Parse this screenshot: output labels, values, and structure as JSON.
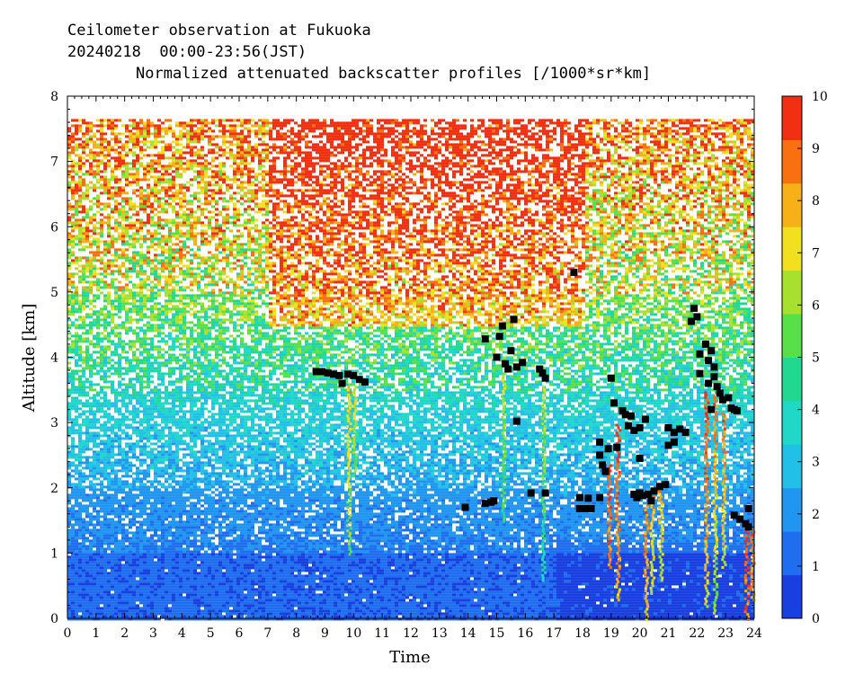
{
  "header": {
    "line1": "Ceilometer observation at Fukuoka",
    "line2": "20240218  00:00-23:56(JST)",
    "line3": "Normalized attenuated backscatter profiles [/1000*sr*km]"
  },
  "chart_data": {
    "type": "heatmap",
    "title": "Normalized attenuated backscatter profiles [/1000*sr*km]",
    "xlabel": "Time",
    "ylabel": "Altitude [km]",
    "xlim": [
      0,
      24
    ],
    "ylim": [
      0,
      8
    ],
    "x_ticks": [
      "0",
      "1",
      "2",
      "3",
      "4",
      "5",
      "6",
      "7",
      "8",
      "9",
      "10",
      "11",
      "12",
      "13",
      "14",
      "15",
      "16",
      "17",
      "18",
      "19",
      "20",
      "21",
      "22",
      "23",
      "24"
    ],
    "y_ticks": [
      "0",
      "1",
      "2",
      "3",
      "4",
      "5",
      "6",
      "7",
      "8"
    ],
    "colorbar": {
      "range": [
        0,
        10
      ],
      "ticks": [
        "0",
        "1",
        "2",
        "3",
        "4",
        "5",
        "6",
        "7",
        "8",
        "9",
        "10"
      ],
      "colors": [
        "#1a3fe0",
        "#1f6ef0",
        "#2196f0",
        "#22c0e8",
        "#20d8c8",
        "#22d890",
        "#58e048",
        "#a8e030",
        "#f0e020",
        "#f8b018",
        "#f87010",
        "#f03010"
      ]
    },
    "data_ceiling_km": 7.65,
    "cloud_base_points": [
      {
        "t": 8.7,
        "alt": 3.78
      },
      {
        "t": 8.9,
        "alt": 3.78
      },
      {
        "t": 9.1,
        "alt": 3.76
      },
      {
        "t": 9.3,
        "alt": 3.74
      },
      {
        "t": 9.5,
        "alt": 3.72
      },
      {
        "t": 9.6,
        "alt": 3.6
      },
      {
        "t": 9.8,
        "alt": 3.74
      },
      {
        "t": 10.0,
        "alt": 3.72
      },
      {
        "t": 10.2,
        "alt": 3.66
      },
      {
        "t": 10.4,
        "alt": 3.62
      },
      {
        "t": 13.9,
        "alt": 1.7
      },
      {
        "t": 14.6,
        "alt": 1.76
      },
      {
        "t": 14.8,
        "alt": 1.78
      },
      {
        "t": 14.9,
        "alt": 1.8
      },
      {
        "t": 14.6,
        "alt": 4.28
      },
      {
        "t": 15.2,
        "alt": 4.48
      },
      {
        "t": 15.1,
        "alt": 4.32
      },
      {
        "t": 15.6,
        "alt": 4.58
      },
      {
        "t": 15.0,
        "alt": 4.0
      },
      {
        "t": 15.3,
        "alt": 3.9
      },
      {
        "t": 15.4,
        "alt": 3.82
      },
      {
        "t": 15.5,
        "alt": 4.1
      },
      {
        "t": 15.7,
        "alt": 3.85
      },
      {
        "t": 15.9,
        "alt": 3.92
      },
      {
        "t": 15.7,
        "alt": 3.02
      },
      {
        "t": 16.2,
        "alt": 1.92
      },
      {
        "t": 16.7,
        "alt": 1.92
      },
      {
        "t": 16.5,
        "alt": 3.82
      },
      {
        "t": 16.6,
        "alt": 3.76
      },
      {
        "t": 16.7,
        "alt": 3.68
      },
      {
        "t": 17.7,
        "alt": 5.3
      },
      {
        "t": 17.9,
        "alt": 1.85
      },
      {
        "t": 17.9,
        "alt": 1.68
      },
      {
        "t": 18.1,
        "alt": 1.68
      },
      {
        "t": 18.3,
        "alt": 1.68
      },
      {
        "t": 18.2,
        "alt": 1.84
      },
      {
        "t": 18.6,
        "alt": 1.85
      },
      {
        "t": 18.6,
        "alt": 2.5
      },
      {
        "t": 18.7,
        "alt": 2.35
      },
      {
        "t": 18.8,
        "alt": 2.25
      },
      {
        "t": 18.9,
        "alt": 2.6
      },
      {
        "t": 18.6,
        "alt": 2.7
      },
      {
        "t": 19.0,
        "alt": 3.68
      },
      {
        "t": 19.1,
        "alt": 3.3
      },
      {
        "t": 19.2,
        "alt": 2.62
      },
      {
        "t": 19.4,
        "alt": 3.18
      },
      {
        "t": 19.5,
        "alt": 3.12
      },
      {
        "t": 19.6,
        "alt": 2.95
      },
      {
        "t": 19.7,
        "alt": 3.1
      },
      {
        "t": 19.8,
        "alt": 2.88
      },
      {
        "t": 20.0,
        "alt": 2.92
      },
      {
        "t": 20.2,
        "alt": 3.05
      },
      {
        "t": 19.8,
        "alt": 1.9
      },
      {
        "t": 19.9,
        "alt": 1.85
      },
      {
        "t": 20.0,
        "alt": 1.92
      },
      {
        "t": 20.1,
        "alt": 1.88
      },
      {
        "t": 20.3,
        "alt": 1.9
      },
      {
        "t": 20.5,
        "alt": 1.95
      },
      {
        "t": 20.7,
        "alt": 2.02
      },
      {
        "t": 20.9,
        "alt": 2.05
      },
      {
        "t": 20.0,
        "alt": 2.45
      },
      {
        "t": 20.4,
        "alt": 1.8
      },
      {
        "t": 21.0,
        "alt": 2.92
      },
      {
        "t": 21.2,
        "alt": 2.85
      },
      {
        "t": 21.4,
        "alt": 2.9
      },
      {
        "t": 21.6,
        "alt": 2.85
      },
      {
        "t": 21.0,
        "alt": 2.65
      },
      {
        "t": 21.2,
        "alt": 2.7
      },
      {
        "t": 21.8,
        "alt": 4.55
      },
      {
        "t": 21.9,
        "alt": 4.75
      },
      {
        "t": 22.0,
        "alt": 4.62
      },
      {
        "t": 22.1,
        "alt": 4.05
      },
      {
        "t": 22.3,
        "alt": 4.2
      },
      {
        "t": 22.4,
        "alt": 3.95
      },
      {
        "t": 22.5,
        "alt": 4.1
      },
      {
        "t": 22.1,
        "alt": 3.75
      },
      {
        "t": 22.4,
        "alt": 3.6
      },
      {
        "t": 22.6,
        "alt": 3.7
      },
      {
        "t": 22.7,
        "alt": 3.55
      },
      {
        "t": 22.6,
        "alt": 3.85
      },
      {
        "t": 22.8,
        "alt": 3.45
      },
      {
        "t": 22.9,
        "alt": 3.35
      },
      {
        "t": 22.5,
        "alt": 3.2
      },
      {
        "t": 23.1,
        "alt": 3.38
      },
      {
        "t": 23.2,
        "alt": 3.22
      },
      {
        "t": 23.3,
        "alt": 3.2
      },
      {
        "t": 23.4,
        "alt": 3.18
      },
      {
        "t": 23.3,
        "alt": 1.58
      },
      {
        "t": 23.5,
        "alt": 1.52
      },
      {
        "t": 23.7,
        "alt": 1.45
      },
      {
        "t": 23.8,
        "alt": 1.4
      },
      {
        "t": 23.8,
        "alt": 1.68
      }
    ]
  }
}
